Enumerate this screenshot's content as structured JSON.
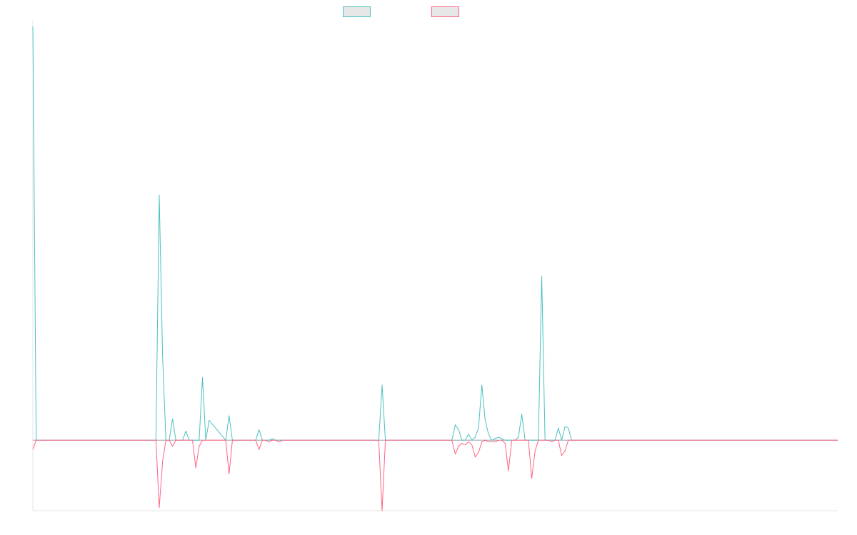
{
  "chart_data": {
    "type": "line",
    "title": "",
    "xlabel": "",
    "ylabel": "",
    "grid": false,
    "legend": "top-center",
    "ylim": [
      -46,
      270
    ],
    "xlim": [
      0,
      242
    ],
    "series": [
      {
        "name": "",
        "color": "#4bc0c0",
        "x": [
          0,
          1,
          37,
          38,
          39,
          40,
          41,
          42,
          43,
          44,
          45,
          46,
          47,
          48,
          49,
          50,
          51,
          52,
          53,
          58,
          59,
          60,
          61,
          62,
          63,
          67,
          68,
          69,
          70,
          71,
          72,
          73,
          74,
          75,
          76,
          104,
          105,
          106,
          126,
          127,
          128,
          129,
          130,
          131,
          132,
          133,
          134,
          135,
          136,
          137,
          138,
          139,
          140,
          141,
          142,
          143,
          144,
          145,
          146,
          147,
          148,
          149,
          150,
          151,
          152,
          153,
          154,
          155,
          156,
          157,
          158,
          159,
          160,
          161,
          162,
          163,
          242
        ],
        "values": [
          270,
          0,
          0,
          160,
          55,
          0,
          0,
          14,
          0,
          0,
          0,
          6,
          0,
          0,
          0,
          0,
          41,
          0,
          13,
          0,
          16,
          0,
          0,
          0,
          0,
          0,
          7,
          0,
          0,
          0,
          1,
          0,
          0,
          0,
          0,
          0,
          36,
          0,
          0,
          10,
          7,
          0,
          0,
          4,
          0,
          2,
          8,
          36,
          13,
          4,
          0,
          1,
          2,
          1,
          0,
          0,
          0,
          0,
          2,
          17,
          0,
          0,
          0,
          0,
          0,
          107,
          0,
          0,
          0,
          0,
          8,
          0,
          9,
          8,
          0,
          0,
          0
        ]
      },
      {
        "name": "",
        "color": "#ff6384",
        "x": [
          0,
          1,
          37,
          38,
          39,
          40,
          41,
          42,
          43,
          44,
          45,
          46,
          47,
          48,
          49,
          50,
          51,
          52,
          53,
          58,
          59,
          60,
          61,
          62,
          63,
          67,
          68,
          69,
          70,
          71,
          72,
          73,
          74,
          75,
          76,
          104,
          105,
          106,
          126,
          127,
          128,
          129,
          130,
          131,
          132,
          133,
          134,
          135,
          136,
          137,
          138,
          139,
          140,
          141,
          142,
          143,
          144,
          145,
          146,
          147,
          148,
          149,
          150,
          151,
          152,
          153,
          154,
          155,
          156,
          157,
          158,
          159,
          160,
          161,
          162,
          163,
          242
        ],
        "values": [
          -6,
          0,
          0,
          -44,
          -14,
          0,
          0,
          -4,
          0,
          0,
          0,
          0,
          0,
          0,
          -18,
          -4,
          0,
          0,
          0,
          0,
          -22,
          0,
          0,
          0,
          0,
          0,
          -6,
          0,
          0,
          -1,
          0,
          0,
          -1,
          0,
          0,
          0,
          -46,
          0,
          0,
          -9,
          -4,
          -2,
          -3,
          -1,
          -3,
          -11,
          -8,
          -1,
          0,
          -1,
          -1,
          -1,
          0,
          0,
          -2,
          -20,
          0,
          0,
          0,
          0,
          0,
          0,
          -25,
          -7,
          0,
          0,
          0,
          0,
          -1,
          0,
          0,
          -10,
          -7,
          0,
          0,
          0,
          0
        ]
      }
    ]
  }
}
